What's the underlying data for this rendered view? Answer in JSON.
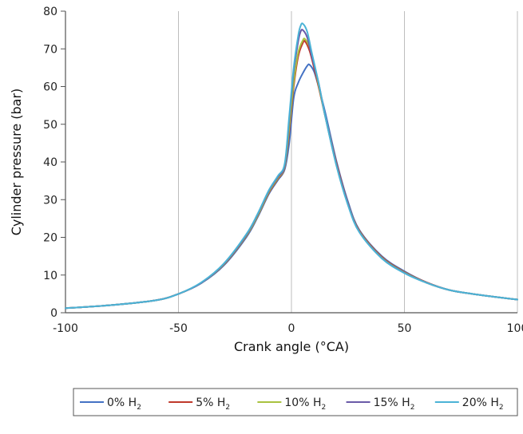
{
  "chart_data": {
    "type": "line",
    "xlabel": "Crank angle (°CA)",
    "ylabel": "Cylinder pressure (bar)",
    "xlim": [
      -100,
      100
    ],
    "ylim": [
      0,
      80
    ],
    "x_ticks": [
      "-100",
      "-50",
      "0",
      "50",
      "100"
    ],
    "y_ticks": [
      "0",
      "10",
      "20",
      "30",
      "40",
      "50",
      "60",
      "70",
      "80"
    ],
    "grid": "vertical",
    "legend": "bottom",
    "series": [
      {
        "name": "0% H",
        "subscript": "2",
        "color": "#4472c4",
        "points": [
          [
            -100,
            1.2
          ],
          [
            -80,
            2
          ],
          [
            -60,
            3.3
          ],
          [
            -50,
            5
          ],
          [
            -40,
            7.8
          ],
          [
            -30,
            12.5
          ],
          [
            -20,
            20
          ],
          [
            -15,
            25.3
          ],
          [
            -10,
            31.5
          ],
          [
            -6,
            35.2
          ],
          [
            -3,
            38
          ],
          [
            -1,
            45
          ],
          [
            1,
            57
          ],
          [
            3,
            61
          ],
          [
            5,
            63.5
          ],
          [
            7,
            65.5
          ],
          [
            8,
            65.8
          ],
          [
            10,
            64
          ],
          [
            12,
            60
          ],
          [
            15,
            53
          ],
          [
            20,
            40
          ],
          [
            25,
            29.5
          ],
          [
            30,
            22
          ],
          [
            40,
            15
          ],
          [
            50,
            11
          ],
          [
            60,
            8
          ],
          [
            70,
            6
          ],
          [
            80,
            5
          ],
          [
            90,
            4.2
          ],
          [
            100,
            3.5
          ]
        ]
      },
      {
        "name": "5% H",
        "subscript": "2",
        "color": "#c0392b",
        "points": [
          [
            -100,
            1.2
          ],
          [
            -80,
            2
          ],
          [
            -60,
            3.3
          ],
          [
            -50,
            5
          ],
          [
            -40,
            7.9
          ],
          [
            -30,
            12.7
          ],
          [
            -20,
            20.3
          ],
          [
            -15,
            25.6
          ],
          [
            -10,
            31.8
          ],
          [
            -6,
            35.5
          ],
          [
            -3,
            38.5
          ],
          [
            -1,
            48
          ],
          [
            1,
            60
          ],
          [
            3,
            68
          ],
          [
            5,
            71.5
          ],
          [
            6,
            72
          ],
          [
            8,
            69.5
          ],
          [
            10,
            65
          ],
          [
            12,
            60
          ],
          [
            15,
            52
          ],
          [
            20,
            39.5
          ],
          [
            25,
            29
          ],
          [
            30,
            21.8
          ],
          [
            40,
            14.8
          ],
          [
            50,
            10.8
          ],
          [
            60,
            8
          ],
          [
            70,
            6
          ],
          [
            80,
            5
          ],
          [
            90,
            4.2
          ],
          [
            100,
            3.5
          ]
        ]
      },
      {
        "name": "10% H",
        "subscript": "2",
        "color": "#a9c23f",
        "points": [
          [
            -100,
            1.2
          ],
          [
            -80,
            2
          ],
          [
            -60,
            3.3
          ],
          [
            -50,
            5
          ],
          [
            -40,
            7.9
          ],
          [
            -30,
            12.8
          ],
          [
            -20,
            20.4
          ],
          [
            -15,
            25.7
          ],
          [
            -10,
            32
          ],
          [
            -6,
            35.7
          ],
          [
            -3,
            38.7
          ],
          [
            -1,
            49
          ],
          [
            1,
            61
          ],
          [
            3,
            69
          ],
          [
            5,
            72.2
          ],
          [
            6,
            72.6
          ],
          [
            8,
            70.5
          ],
          [
            10,
            66
          ],
          [
            12,
            60.5
          ],
          [
            15,
            52
          ],
          [
            20,
            39
          ],
          [
            25,
            28.8
          ],
          [
            30,
            21.6
          ],
          [
            40,
            14.6
          ],
          [
            50,
            10.7
          ],
          [
            60,
            7.9
          ],
          [
            70,
            6
          ],
          [
            80,
            5
          ],
          [
            90,
            4.2
          ],
          [
            100,
            3.5
          ]
        ]
      },
      {
        "name": "15% H",
        "subscript": "2",
        "color": "#6a5aa8",
        "points": [
          [
            -100,
            1.2
          ],
          [
            -80,
            2
          ],
          [
            -60,
            3.3
          ],
          [
            -50,
            5
          ],
          [
            -40,
            7.9
          ],
          [
            -30,
            12.9
          ],
          [
            -20,
            20.6
          ],
          [
            -15,
            26
          ],
          [
            -10,
            32.3
          ],
          [
            -6,
            36
          ],
          [
            -3,
            39
          ],
          [
            -1,
            51
          ],
          [
            1,
            64
          ],
          [
            3,
            72
          ],
          [
            4,
            74.5
          ],
          [
            5,
            75
          ],
          [
            7,
            73
          ],
          [
            9,
            68
          ],
          [
            12,
            61
          ],
          [
            15,
            52
          ],
          [
            20,
            39
          ],
          [
            25,
            28.8
          ],
          [
            30,
            21.5
          ],
          [
            40,
            14.5
          ],
          [
            50,
            10.6
          ],
          [
            60,
            7.9
          ],
          [
            70,
            6
          ],
          [
            80,
            5
          ],
          [
            90,
            4.2
          ],
          [
            100,
            3.5
          ]
        ]
      },
      {
        "name": "20% H",
        "subscript": "2",
        "color": "#4bb3d6",
        "points": [
          [
            -100,
            1.2
          ],
          [
            -80,
            2
          ],
          [
            -60,
            3.3
          ],
          [
            -50,
            5
          ],
          [
            -40,
            8
          ],
          [
            -30,
            13
          ],
          [
            -20,
            20.8
          ],
          [
            -15,
            26.2
          ],
          [
            -10,
            32.5
          ],
          [
            -6,
            36.3
          ],
          [
            -3,
            39.5
          ],
          [
            -1,
            52
          ],
          [
            1,
            65
          ],
          [
            3,
            73.5
          ],
          [
            4,
            76
          ],
          [
            5,
            76.7
          ],
          [
            7,
            74.5
          ],
          [
            9,
            69
          ],
          [
            12,
            61
          ],
          [
            15,
            52
          ],
          [
            20,
            38.8
          ],
          [
            25,
            28.6
          ],
          [
            30,
            21.4
          ],
          [
            40,
            14.4
          ],
          [
            50,
            10.5
          ],
          [
            60,
            7.9
          ],
          [
            70,
            6
          ],
          [
            80,
            5
          ],
          [
            90,
            4.2
          ],
          [
            100,
            3.5
          ]
        ]
      }
    ]
  }
}
